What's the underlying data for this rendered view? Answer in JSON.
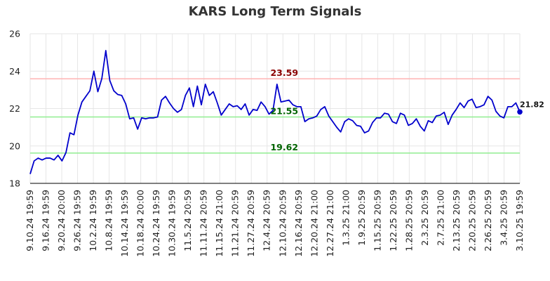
{
  "chart_data": {
    "type": "line",
    "title": "KARS Long Term Signals",
    "xlabel": "",
    "ylabel": "",
    "ylim": [
      18,
      26
    ],
    "yticks": [
      18,
      20,
      22,
      24,
      26
    ],
    "grid": true,
    "colors": {
      "line": "#0000cc",
      "resistance": "#ffb3b3",
      "resistance_label": "#8b0000",
      "support": "#90ee90",
      "support_label": "#006400",
      "grid": "#e6e6e6",
      "axis": "#000000"
    },
    "x_tick_labels": [
      "9.10.24 19:59",
      "9.16.24 19:59",
      "9.20.24 20:00",
      "9.26.24 19:59",
      "10.2.24 19:59",
      "10.8.24 19:59",
      "10.14.24 19:59",
      "10.18.24 20:00",
      "10.24.24 19:59",
      "10.30.24 19:59",
      "11.5.24 20:59",
      "11.11.24 20:59",
      "11.15.24 21:00",
      "11.21.24 20:59",
      "11.27.24 20:59",
      "12.4.24 20:59",
      "12.10.24 20:59",
      "12.16.24 20:59",
      "12.20.24 21:00",
      "12.27.24 21:00",
      "1.3.25 21:00",
      "1.9.25 20:59",
      "1.15.25 20:59",
      "1.22.25 20:59",
      "1.28.25 20:59",
      "2.3.25 20:59",
      "2.7.25 21:00",
      "2.13.25 20:59",
      "2.20.25 20:59",
      "2.26.25 20:59",
      "3.4.25 20:59",
      "3.10.25 19:59"
    ],
    "series": [
      {
        "values": [
          18.5,
          19.2,
          19.35,
          19.25,
          19.35,
          19.35,
          19.25,
          19.5,
          19.2,
          19.65,
          20.7,
          20.6,
          21.65,
          22.35,
          22.65,
          22.95,
          24.0,
          22.9,
          23.6,
          25.1,
          23.5,
          22.95,
          22.75,
          22.7,
          22.25,
          21.45,
          21.5,
          20.9,
          21.5,
          21.45,
          21.5,
          21.5,
          21.55,
          22.45,
          22.65,
          22.3,
          22.0,
          21.8,
          21.95,
          22.7,
          23.1,
          22.1,
          23.2,
          22.2,
          23.3,
          22.7,
          22.9,
          22.3,
          21.65,
          21.95,
          22.25,
          22.1,
          22.15,
          21.95,
          22.25,
          21.65,
          21.95,
          21.9,
          22.35,
          22.1,
          21.7,
          21.9,
          23.3,
          22.35,
          22.4,
          22.45,
          22.2,
          22.1,
          22.1,
          21.3,
          21.45,
          21.5,
          21.6,
          21.95,
          22.1,
          21.6,
          21.3,
          21.0,
          20.75,
          21.3,
          21.45,
          21.35,
          21.1,
          21.05,
          20.7,
          20.8,
          21.25,
          21.5,
          21.5,
          21.75,
          21.7,
          21.3,
          21.2,
          21.75,
          21.65,
          21.1,
          21.2,
          21.45,
          21.05,
          20.8,
          21.35,
          21.25,
          21.6,
          21.65,
          21.8,
          21.15,
          21.65,
          21.95,
          22.3,
          22.05,
          22.4,
          22.5,
          22.05,
          22.1,
          22.2,
          22.65,
          22.45,
          21.85,
          21.6,
          21.5,
          22.1,
          22.1,
          22.3,
          21.82
        ]
      }
    ],
    "reference_lines": [
      {
        "label": "23.59",
        "value": 23.59,
        "kind": "resistance"
      },
      {
        "label": "21.55",
        "value": 21.55,
        "kind": "support"
      },
      {
        "label": "19.62",
        "value": 19.62,
        "kind": "support"
      }
    ],
    "last_value_label": "21.82"
  }
}
